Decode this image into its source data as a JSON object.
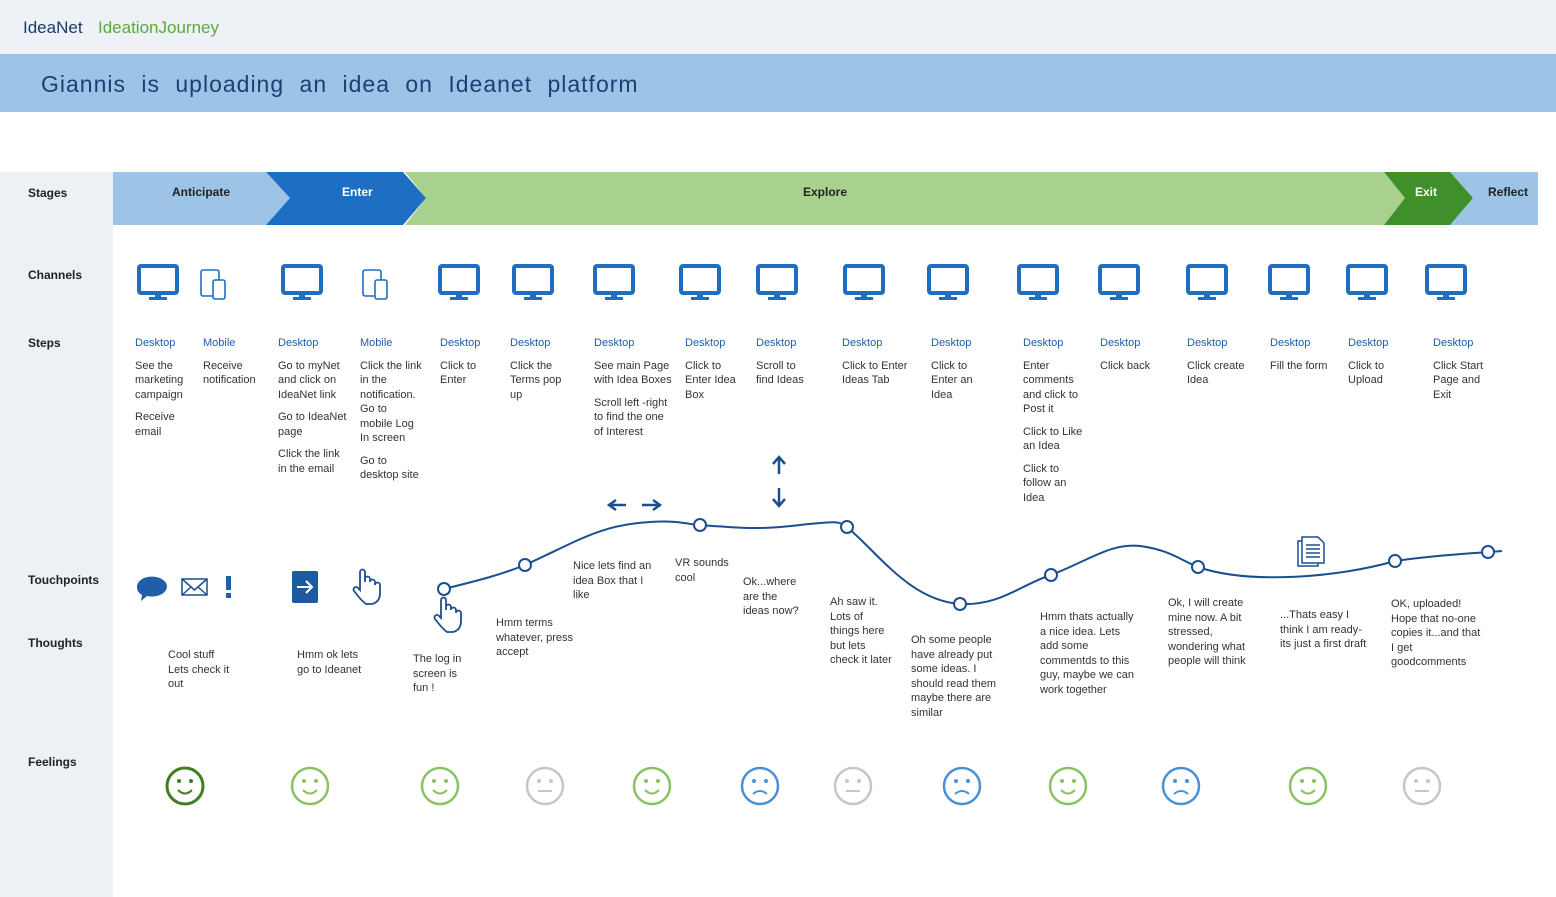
{
  "header": {
    "brand": "IdeaNet",
    "product": "IdeationJourney",
    "title": "Giannis is uploading an idea on Ideanet platform"
  },
  "row_labels": [
    "Stages",
    "Channels",
    "Steps",
    "Touchpoints",
    "Thoughts",
    "Feelings"
  ],
  "stages": [
    "Anticipate",
    "Enter",
    "Explore",
    "Exit",
    "Reflect"
  ],
  "steps": [
    {
      "channel": "Desktop",
      "actions": [
        "See the marketing campaign",
        "Receive email"
      ]
    },
    {
      "channel": "Mobile",
      "actions": [
        "Receive notification"
      ]
    },
    {
      "channel": "Desktop",
      "actions": [
        "Go to myNet and click on IdeaNet link",
        "Go to IdeaNet page",
        "Click the link in the email"
      ]
    },
    {
      "channel": "Mobile",
      "actions": [
        "Click the link in the notification. Go to mobile Log In screen",
        "Go to desktop site"
      ]
    },
    {
      "channel": "Desktop",
      "actions": [
        "Click to Enter"
      ]
    },
    {
      "channel": "Desktop",
      "actions": [
        "Click the Terms pop up"
      ]
    },
    {
      "channel": "Desktop",
      "actions": [
        "See main Page with Idea Boxes",
        "Scroll left -right to find the one of Interest"
      ]
    },
    {
      "channel": "Desktop",
      "actions": [
        "Click to Enter Idea Box"
      ]
    },
    {
      "channel": "Desktop",
      "actions": [
        "Scroll to find Ideas"
      ]
    },
    {
      "channel": "Desktop",
      "actions": [
        "Click to Enter Ideas Tab"
      ]
    },
    {
      "channel": "Desktop",
      "actions": [
        "Click to Enter an Idea"
      ]
    },
    {
      "channel": "Desktop",
      "actions": [
        "Enter comments and click to Post it",
        "Click to Like an Idea",
        "Click to follow an Idea"
      ]
    },
    {
      "channel": "Desktop",
      "actions": [
        "Click back"
      ]
    },
    {
      "channel": "Desktop",
      "actions": [
        "Click create Idea"
      ]
    },
    {
      "channel": "Desktop",
      "actions": [
        "Fill the form"
      ]
    },
    {
      "channel": "Desktop",
      "actions": [
        "Click to Upload"
      ]
    },
    {
      "channel": "Desktop",
      "actions": [
        "Click Start Page and Exit"
      ]
    }
  ],
  "thoughts": [
    "Cool stuff Lets check it out",
    "Hmm ok lets go to Ideanet",
    "The log in screen is fun !",
    "Hmm terms whatever, press accept",
    "Nice lets find an idea Box that I like",
    "VR sounds cool",
    "Ok...where are the ideas now?",
    "Ah saw it. Lots of things here but lets check it later",
    "Oh some people have already put some ideas. I should read them maybe there are similar",
    "Hmm thats actually a nice idea. Lets add some commentds to this guy, maybe we can work together",
    "Ok, I will create mine now. A bit stressed, wondering what people will think",
    "...Thats easy I think I am ready- its just a first draft",
    "OK, uploaded! Hope that no-one copies it...and that I get goodcomments"
  ]
}
